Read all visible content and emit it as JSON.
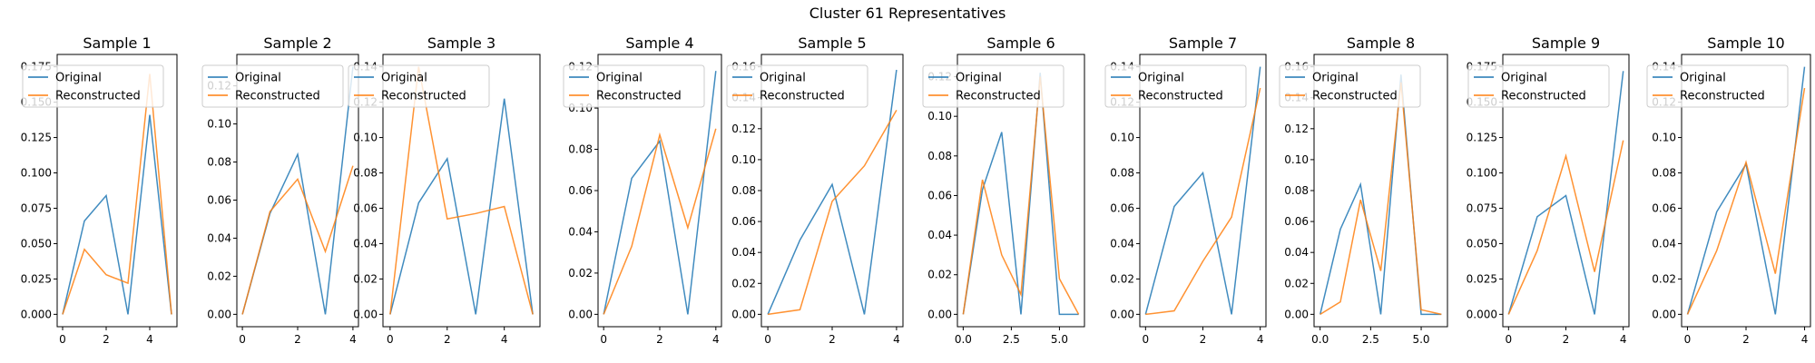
{
  "figure": {
    "title": "Cluster 61 Representatives"
  },
  "legend": {
    "placement": "upper-left"
  },
  "colors": {
    "original": "#1f77b4",
    "reconstructed": "#ff7f0e",
    "axes": "#000000"
  },
  "chart_data": [
    {
      "type": "line",
      "title": "Sample 1",
      "xlim": [
        -0.25,
        5.25
      ],
      "ylim": [
        -0.00875,
        0.18375
      ],
      "xticks": [
        0,
        2,
        4
      ],
      "yticks": [
        0,
        0.025,
        0.05,
        0.075,
        0.1,
        0.125,
        0.15,
        0.175
      ],
      "xtick_labels": [
        "0",
        "2",
        "4"
      ],
      "ytick_labels": [
        "0.000",
        "0.025",
        "0.050",
        "0.075",
        "0.100",
        "0.125",
        "0.150",
        "0.175"
      ],
      "series": [
        {
          "name": "Original",
          "x": [
            0,
            1,
            2,
            3,
            4,
            5
          ],
          "y": [
            0,
            0.066,
            0.084,
            0,
            0.141,
            0
          ]
        },
        {
          "name": "Reconstructed",
          "x": [
            0,
            1,
            2,
            3,
            4,
            5
          ],
          "y": [
            0,
            0.046,
            0.028,
            0.022,
            0.17,
            0
          ]
        }
      ]
    },
    {
      "type": "line",
      "title": "Sample 2",
      "xlim": [
        -0.2,
        4.2
      ],
      "ylim": [
        -0.0065,
        0.1365
      ],
      "xticks": [
        0,
        2,
        4
      ],
      "yticks": [
        0,
        0.02,
        0.04,
        0.06,
        0.08,
        0.1,
        0.12
      ],
      "xtick_labels": [
        "0",
        "2",
        "4"
      ],
      "ytick_labels": [
        "0.00",
        "0.02",
        "0.04",
        "0.06",
        "0.08",
        "0.10",
        "0.12"
      ],
      "series": [
        {
          "name": "Original",
          "x": [
            0,
            1,
            2,
            3,
            4
          ],
          "y": [
            0,
            0.053,
            0.084,
            0,
            0.13
          ]
        },
        {
          "name": "Reconstructed",
          "x": [
            0,
            1,
            2,
            3,
            4
          ],
          "y": [
            0,
            0.054,
            0.071,
            0.033,
            0.078
          ]
        }
      ]
    },
    {
      "type": "line",
      "title": "Sample 3",
      "xlim": [
        -0.25,
        5.25
      ],
      "ylim": [
        -0.007,
        0.147
      ],
      "xticks": [
        0,
        2,
        4
      ],
      "yticks": [
        0,
        0.02,
        0.04,
        0.06,
        0.08,
        0.1,
        0.12,
        0.14
      ],
      "xtick_labels": [
        "0",
        "2",
        "4"
      ],
      "ytick_labels": [
        "0.00",
        "0.02",
        "0.04",
        "0.06",
        "0.08",
        "0.10",
        "0.12",
        "0.14"
      ],
      "series": [
        {
          "name": "Original",
          "x": [
            0,
            1,
            2,
            3,
            4,
            5
          ],
          "y": [
            0,
            0.063,
            0.088,
            0,
            0.122,
            0
          ]
        },
        {
          "name": "Reconstructed",
          "x": [
            0,
            1,
            2,
            3,
            4,
            5
          ],
          "y": [
            0,
            0.14,
            0.054,
            0.057,
            0.061,
            0
          ]
        }
      ]
    },
    {
      "type": "line",
      "title": "Sample 4",
      "xlim": [
        -0.2,
        4.2
      ],
      "ylim": [
        -0.006,
        0.126
      ],
      "xticks": [
        0,
        2,
        4
      ],
      "yticks": [
        0,
        0.02,
        0.04,
        0.06,
        0.08,
        0.1,
        0.12
      ],
      "xtick_labels": [
        "0",
        "2",
        "4"
      ],
      "ytick_labels": [
        "0.00",
        "0.02",
        "0.04",
        "0.06",
        "0.08",
        "0.10",
        "0.12"
      ],
      "series": [
        {
          "name": "Original",
          "x": [
            0,
            1,
            2,
            3,
            4
          ],
          "y": [
            0,
            0.066,
            0.084,
            0,
            0.118
          ]
        },
        {
          "name": "Reconstructed",
          "x": [
            0,
            1,
            2,
            3,
            4
          ],
          "y": [
            0,
            0.033,
            0.087,
            0.042,
            0.09
          ]
        }
      ]
    },
    {
      "type": "line",
      "title": "Sample 5",
      "xlim": [
        -0.2,
        4.2
      ],
      "ylim": [
        -0.008,
        0.168
      ],
      "xticks": [
        0,
        2,
        4
      ],
      "yticks": [
        0,
        0.02,
        0.04,
        0.06,
        0.08,
        0.1,
        0.12,
        0.14,
        0.16
      ],
      "xtick_labels": [
        "0",
        "2",
        "4"
      ],
      "ytick_labels": [
        "0.00",
        "0.02",
        "0.04",
        "0.06",
        "0.08",
        "0.10",
        "0.12",
        "0.14",
        "0.16"
      ],
      "series": [
        {
          "name": "Original",
          "x": [
            0,
            1,
            2,
            3,
            4
          ],
          "y": [
            0,
            0.048,
            0.084,
            0,
            0.158
          ]
        },
        {
          "name": "Reconstructed",
          "x": [
            0,
            1,
            2,
            3,
            4
          ],
          "y": [
            0,
            0.003,
            0.073,
            0.096,
            0.132
          ]
        }
      ]
    },
    {
      "type": "line",
      "title": "Sample 6",
      "xlim": [
        -0.3,
        6.3
      ],
      "ylim": [
        -0.00625,
        0.13125
      ],
      "xticks": [
        0,
        2.5,
        5
      ],
      "yticks": [
        0,
        0.02,
        0.04,
        0.06,
        0.08,
        0.1,
        0.12
      ],
      "xtick_labels": [
        "0.0",
        "2.5",
        "5.0"
      ],
      "ytick_labels": [
        "0.00",
        "0.02",
        "0.04",
        "0.06",
        "0.08",
        "0.10",
        "0.12"
      ],
      "series": [
        {
          "name": "Original",
          "x": [
            0,
            1,
            2,
            3,
            4,
            5,
            6
          ],
          "y": [
            0,
            0.063,
            0.092,
            0,
            0.122,
            0,
            0
          ]
        },
        {
          "name": "Reconstructed",
          "x": [
            0,
            1,
            2,
            3,
            4,
            5,
            6
          ],
          "y": [
            0,
            0.068,
            0.03,
            0.01,
            0.12,
            0.018,
            0
          ]
        }
      ]
    },
    {
      "type": "line",
      "title": "Sample 7",
      "xlim": [
        -0.2,
        4.2
      ],
      "ylim": [
        -0.007,
        0.147
      ],
      "xticks": [
        0,
        2,
        4
      ],
      "yticks": [
        0,
        0.02,
        0.04,
        0.06,
        0.08,
        0.1,
        0.12,
        0.14
      ],
      "xtick_labels": [
        "0",
        "2",
        "4"
      ],
      "ytick_labels": [
        "0.00",
        "0.02",
        "0.04",
        "0.06",
        "0.08",
        "0.10",
        "0.12",
        "0.14"
      ],
      "series": [
        {
          "name": "Original",
          "x": [
            0,
            1,
            2,
            3,
            4
          ],
          "y": [
            0,
            0.061,
            0.08,
            0,
            0.14
          ]
        },
        {
          "name": "Reconstructed",
          "x": [
            0,
            1,
            2,
            3,
            4
          ],
          "y": [
            0,
            0.002,
            0.03,
            0.055,
            0.128
          ]
        }
      ]
    },
    {
      "type": "line",
      "title": "Sample 8",
      "xlim": [
        -0.3,
        6.3
      ],
      "ylim": [
        -0.008,
        0.168
      ],
      "xticks": [
        0,
        2.5,
        5
      ],
      "yticks": [
        0,
        0.02,
        0.04,
        0.06,
        0.08,
        0.1,
        0.12,
        0.14,
        0.16
      ],
      "xtick_labels": [
        "0.0",
        "2.5",
        "5.0"
      ],
      "ytick_labels": [
        "0.00",
        "0.02",
        "0.04",
        "0.06",
        "0.08",
        "0.10",
        "0.12",
        "0.14",
        "0.16"
      ],
      "series": [
        {
          "name": "Original",
          "x": [
            0,
            1,
            2,
            3,
            4,
            5,
            6
          ],
          "y": [
            0,
            0.055,
            0.084,
            0,
            0.155,
            0,
            0
          ]
        },
        {
          "name": "Reconstructed",
          "x": [
            0,
            1,
            2,
            3,
            4,
            5,
            6
          ],
          "y": [
            0,
            0.008,
            0.074,
            0.028,
            0.15,
            0.003,
            0
          ]
        }
      ]
    },
    {
      "type": "line",
      "title": "Sample 9",
      "xlim": [
        -0.2,
        4.2
      ],
      "ylim": [
        -0.00875,
        0.18375
      ],
      "xticks": [
        0,
        2,
        4
      ],
      "yticks": [
        0,
        0.025,
        0.05,
        0.075,
        0.1,
        0.125,
        0.15,
        0.175
      ],
      "xtick_labels": [
        "0",
        "2",
        "4"
      ],
      "ytick_labels": [
        "0.000",
        "0.025",
        "0.050",
        "0.075",
        "0.100",
        "0.125",
        "0.150",
        "0.175"
      ],
      "series": [
        {
          "name": "Original",
          "x": [
            0,
            1,
            2,
            3,
            4
          ],
          "y": [
            0,
            0.069,
            0.084,
            0,
            0.172
          ]
        },
        {
          "name": "Reconstructed",
          "x": [
            0,
            1,
            2,
            3,
            4
          ],
          "y": [
            0,
            0.045,
            0.112,
            0.03,
            0.123
          ]
        }
      ]
    },
    {
      "type": "line",
      "title": "Sample 10",
      "xlim": [
        -0.2,
        4.2
      ],
      "ylim": [
        -0.007,
        0.147
      ],
      "xticks": [
        0,
        2,
        4
      ],
      "yticks": [
        0,
        0.02,
        0.04,
        0.06,
        0.08,
        0.1,
        0.12,
        0.14
      ],
      "xtick_labels": [
        "0",
        "2",
        "4"
      ],
      "ytick_labels": [
        "0.00",
        "0.02",
        "0.04",
        "0.06",
        "0.08",
        "0.10",
        "0.12",
        "0.14"
      ],
      "series": [
        {
          "name": "Original",
          "x": [
            0,
            1,
            2,
            3,
            4
          ],
          "y": [
            0,
            0.058,
            0.085,
            0,
            0.14
          ]
        },
        {
          "name": "Reconstructed",
          "x": [
            0,
            1,
            2,
            3,
            4
          ],
          "y": [
            0,
            0.036,
            0.086,
            0.023,
            0.128
          ]
        }
      ]
    }
  ]
}
